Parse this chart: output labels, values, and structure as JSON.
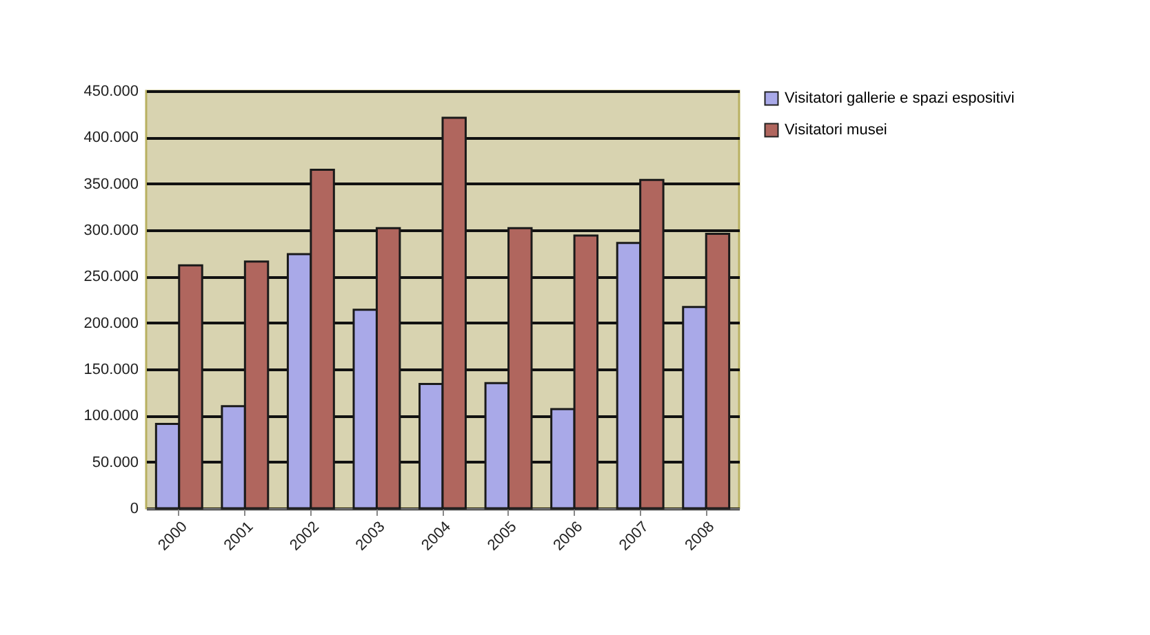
{
  "chart_data": {
    "type": "bar",
    "categories": [
      "2000",
      "2001",
      "2002",
      "2003",
      "2004",
      "2005",
      "2006",
      "2007",
      "2008"
    ],
    "series": [
      {
        "name": "Visitatori gallerie e spazi espositivi",
        "color": "#a9a9e8",
        "values": [
          91000,
          110000,
          274000,
          214000,
          134000,
          135000,
          107000,
          286000,
          217000
        ]
      },
      {
        "name": "Visitatori musei",
        "color": "#b0665e",
        "values": [
          262000,
          266000,
          365000,
          302000,
          421000,
          302000,
          294000,
          354000,
          296000
        ]
      }
    ],
    "ylim": [
      0,
      450000
    ],
    "yticks": [
      {
        "value": 0,
        "label": "0"
      },
      {
        "value": 50000,
        "label": "50.000"
      },
      {
        "value": 100000,
        "label": "100.000"
      },
      {
        "value": 150000,
        "label": "150.000"
      },
      {
        "value": 200000,
        "label": "200.000"
      },
      {
        "value": 250000,
        "label": "250.000"
      },
      {
        "value": 300000,
        "label": "300.000"
      },
      {
        "value": 350000,
        "label": "350.000"
      },
      {
        "value": 400000,
        "label": "400.000"
      },
      {
        "value": 450000,
        "label": "450.000"
      }
    ],
    "grid": "y",
    "legend": "top right"
  }
}
